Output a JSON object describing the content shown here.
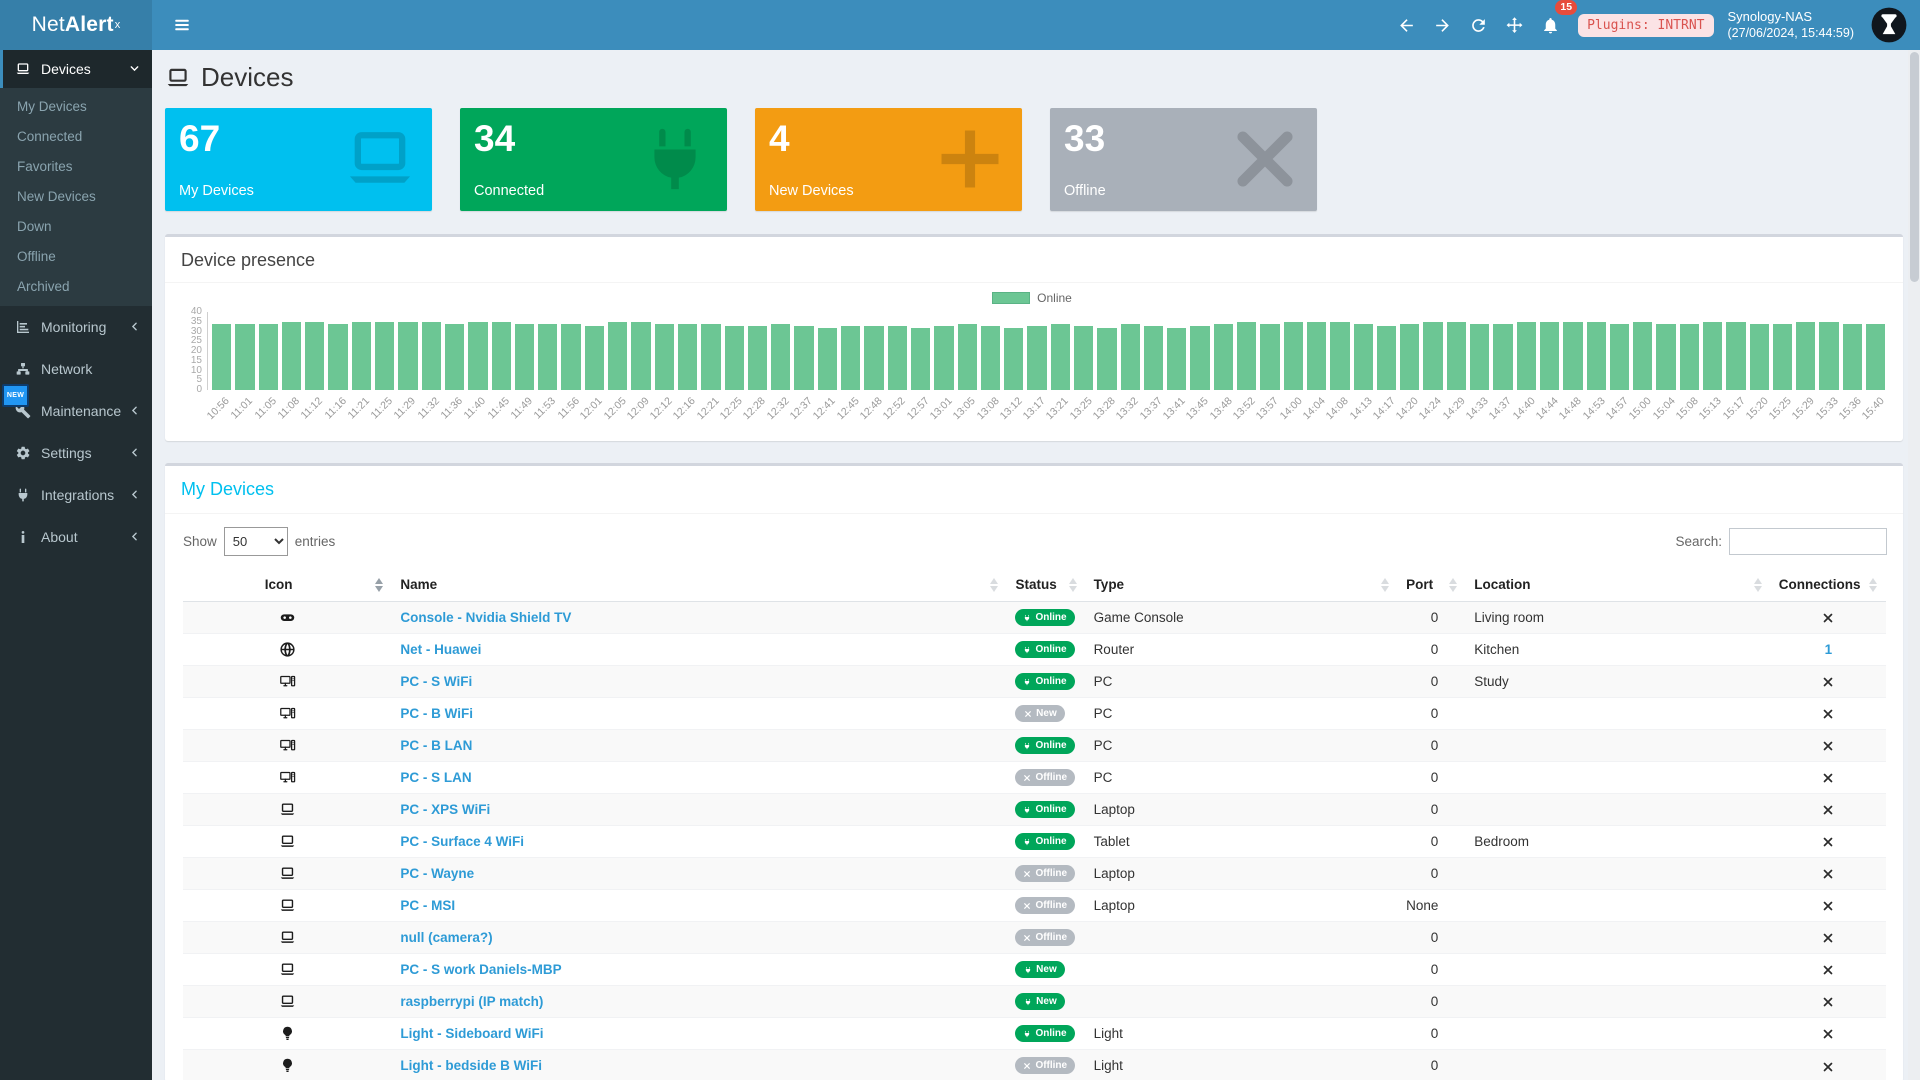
{
  "header": {
    "logo_prefix": "Net",
    "logo_bold": "Alert",
    "logo_sup": "x",
    "notifications_count": "15",
    "plugins_badge": "Plugins: INTRNT",
    "host_name": "Synology-NAS",
    "host_time": "(27/06/2024, 15:44:59)"
  },
  "sidebar": {
    "devices": {
      "label": "Devices",
      "icon": "laptop"
    },
    "submenu": [
      "My Devices",
      "Connected",
      "Favorites",
      "New Devices",
      "Down",
      "Offline",
      "Archived"
    ],
    "items": [
      {
        "label": "Monitoring",
        "icon": "chart",
        "chevron": true
      },
      {
        "label": "Network",
        "icon": "network",
        "chevron": false
      },
      {
        "label": "Maintenance",
        "icon": "wrench",
        "chevron": true
      },
      {
        "label": "Settings",
        "icon": "gear",
        "chevron": true
      },
      {
        "label": "Integrations",
        "icon": "plug",
        "chevron": true
      },
      {
        "label": "About",
        "icon": "info",
        "chevron": true
      }
    ],
    "new_badge": "NEW"
  },
  "page": {
    "title": "Devices"
  },
  "stat_cards": [
    {
      "value": "67",
      "label": "My Devices",
      "color": "#00c0ef",
      "icon": "laptop"
    },
    {
      "value": "34",
      "label": "Connected",
      "color": "#00a65a",
      "icon": "plug"
    },
    {
      "value": "4",
      "label": "New Devices",
      "color": "#f39c12",
      "icon": "plus"
    },
    {
      "value": "33",
      "label": "Offline",
      "color": "#a9b0b9",
      "icon": "xmark"
    }
  ],
  "chart_card": {
    "title": "Device presence",
    "legend": "Online"
  },
  "chart_data": {
    "type": "bar",
    "title": "Device presence",
    "legend_entries": [
      "Online"
    ],
    "legend_position": "top-center",
    "bar_color": "#6cc694",
    "grid": false,
    "ylim": [
      0,
      40
    ],
    "y_ticks": [
      40,
      35,
      30,
      25,
      20,
      15,
      10,
      5,
      0
    ],
    "x": [
      "10:56",
      "11:01",
      "11:05",
      "11:08",
      "11:12",
      "11:16",
      "11:21",
      "11:25",
      "11:29",
      "11:32",
      "11:36",
      "11:40",
      "11:45",
      "11:49",
      "11:53",
      "11:56",
      "12:01",
      "12:05",
      "12:09",
      "12:12",
      "12:16",
      "12:21",
      "12:25",
      "12:28",
      "12:32",
      "12:37",
      "12:41",
      "12:45",
      "12:48",
      "12:52",
      "12:57",
      "13:01",
      "13:05",
      "13:08",
      "13:12",
      "13:17",
      "13:21",
      "13:25",
      "13:28",
      "13:32",
      "13:37",
      "13:41",
      "13:45",
      "13:48",
      "13:52",
      "13:57",
      "14:00",
      "14:04",
      "14:08",
      "14:13",
      "14:17",
      "14:20",
      "14:24",
      "14:29",
      "14:33",
      "14:37",
      "14:40",
      "14:44",
      "14:48",
      "14:53",
      "14:57",
      "15:00",
      "15:04",
      "15:08",
      "15:13",
      "15:17",
      "15:20",
      "15:25",
      "15:29",
      "15:33",
      "15:36",
      "15:40"
    ],
    "series": [
      {
        "name": "Online",
        "values": [
          34,
          34,
          34,
          35,
          35,
          34,
          35,
          35,
          35,
          35,
          34,
          35,
          35,
          34,
          34,
          34,
          33,
          35,
          35,
          34,
          34,
          34,
          33,
          33,
          34,
          33,
          32,
          33,
          33,
          33,
          32,
          33,
          34,
          33,
          32,
          33,
          34,
          33,
          32,
          34,
          33,
          32,
          33,
          34,
          35,
          34,
          35,
          35,
          35,
          34,
          33,
          34,
          35,
          35,
          34,
          34,
          35,
          35,
          35,
          35,
          34,
          35,
          34,
          34,
          35,
          35,
          34,
          34,
          35,
          35,
          34,
          34
        ]
      }
    ]
  },
  "devices_table": {
    "title": "My Devices",
    "show_label": "Show",
    "entries_label": "entries",
    "page_length": "50",
    "search_label": "Search:",
    "search_value": "",
    "columns": [
      "Icon",
      "Name",
      "Status",
      "Type",
      "Port",
      "Location",
      "Connections"
    ],
    "rows": [
      {
        "icon": "gamepad",
        "name": "Console - Nvidia Shield TV",
        "status": "Online",
        "status_style": "online",
        "type": "Game Console",
        "port": "0",
        "location": "Living room",
        "connections": ""
      },
      {
        "icon": "globe",
        "name": "Net - Huawei",
        "status": "Online",
        "status_style": "online",
        "type": "Router",
        "port": "0",
        "location": "Kitchen",
        "connections": "1"
      },
      {
        "icon": "desktop",
        "name": "PC - S WiFi",
        "status": "Online",
        "status_style": "online",
        "type": "PC",
        "port": "0",
        "location": "Study",
        "connections": ""
      },
      {
        "icon": "desktop",
        "name": "PC - B WiFi",
        "status": "New",
        "status_style": "offline",
        "type": "PC",
        "port": "0",
        "location": "",
        "connections": ""
      },
      {
        "icon": "desktop",
        "name": "PC - B LAN",
        "status": "Online",
        "status_style": "online",
        "type": "PC",
        "port": "0",
        "location": "",
        "connections": ""
      },
      {
        "icon": "desktop",
        "name": "PC - S LAN",
        "status": "Offline",
        "status_style": "offline",
        "type": "PC",
        "port": "0",
        "location": "",
        "connections": ""
      },
      {
        "icon": "laptop",
        "name": "PC - XPS WiFi",
        "status": "Online",
        "status_style": "online",
        "type": "Laptop",
        "port": "0",
        "location": "",
        "connections": ""
      },
      {
        "icon": "laptop",
        "name": "PC - Surface 4 WiFi",
        "status": "Online",
        "status_style": "online",
        "type": "Tablet",
        "port": "0",
        "location": "Bedroom",
        "connections": ""
      },
      {
        "icon": "laptop",
        "name": "PC - Wayne",
        "status": "Offline",
        "status_style": "offline",
        "type": "Laptop",
        "port": "0",
        "location": "",
        "connections": ""
      },
      {
        "icon": "laptop",
        "name": "PC - MSI",
        "status": "Offline",
        "status_style": "offline",
        "type": "Laptop",
        "port": "None",
        "location": "",
        "connections": ""
      },
      {
        "icon": "laptop",
        "name": "null (camera?)",
        "status": "Offline",
        "status_style": "offline",
        "type": "",
        "port": "0",
        "location": "",
        "connections": ""
      },
      {
        "icon": "laptop",
        "name": "PC - S work Daniels-MBP",
        "status": "New",
        "status_style": "online",
        "type": "",
        "port": "0",
        "location": "",
        "connections": ""
      },
      {
        "icon": "laptop",
        "name": "raspberrypi (IP match)",
        "status": "New",
        "status_style": "online",
        "type": "",
        "port": "0",
        "location": "",
        "connections": ""
      },
      {
        "icon": "bulb",
        "name": "Light - Sideboard WiFi",
        "status": "Online",
        "status_style": "online",
        "type": "Light",
        "port": "0",
        "location": "",
        "connections": ""
      },
      {
        "icon": "bulb",
        "name": "Light - bedside B WiFi",
        "status": "Offline",
        "status_style": "offline",
        "type": "Light",
        "port": "0",
        "location": "",
        "connections": ""
      }
    ]
  },
  "colors": {
    "header_blue": "#3c8dbc",
    "logo_blue": "#367fa9",
    "sidebar_dark": "#222d32",
    "content_bg": "#ecf0f5",
    "link_blue": "#2e9bd6",
    "pill_green": "#00a65a",
    "pill_gray": "#b4bac1",
    "bar_green": "#6cc694",
    "badge_red": "#e74c3c",
    "table_title_cyan": "#00c0ef"
  }
}
